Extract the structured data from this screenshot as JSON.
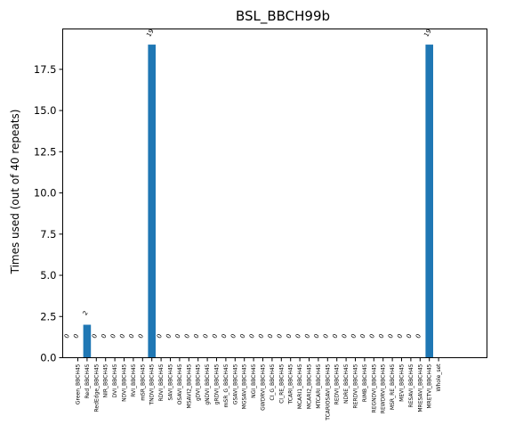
{
  "chart_data": {
    "type": "bar",
    "title": "BSL_BBCH99b",
    "xlabel": "",
    "ylabel": "Times used (out of 40 repeats)",
    "ylim": [
      0,
      19.95
    ],
    "yticks": [
      0.0,
      2.5,
      5.0,
      7.5,
      10.0,
      12.5,
      15.0,
      17.5
    ],
    "ytick_labels": [
      "0.0",
      "2.5",
      "5.0",
      "7.5",
      "10.0",
      "12.5",
      "15.0",
      "17.5"
    ],
    "grid": false,
    "bar_color": "#1f77b4",
    "label_left_of_first_bar": "0",
    "categories": [
      "Green_BBCH45",
      "Red_BBCH45",
      "RedEdge_BBCH45",
      "NIR_BBCH45",
      "DVI_BBCH45",
      "NDVI_BBCH45",
      "RVI_BBCH45",
      "mSR_BBCH45",
      "TNDVI_BBCH45",
      "RDVI_BBCH45",
      "SAVI_BBCH45",
      "OSAVI_BBCH45",
      "MSAVI2_BBCH45",
      "gDVI_BBCH45",
      "gNDVI_BBCH45",
      "gRDVI_BBCH45",
      "mSR_G_BBCH45",
      "GSAVI_BBCH45",
      "MGSAVI_BBCH45",
      "NGI_BBCH45",
      "GWDRVI_BBCH45",
      "CI_G_BBCH45",
      "CI_RE_BBCH45",
      "TCARI_BBCH45",
      "MCARI1_BBCH45",
      "MCARI2_BBCH45",
      "MTCARI_BBCH45",
      "TCARIOSAVI_BBCH45",
      "REDVI_BBCH45",
      "NDRE_BBCH45",
      "RERDVI_BBCH45",
      "RIMB_BBCH45",
      "REGNDVI_BBCH45",
      "REWDRVI_BBCH45",
      "MSR_RE_BBCH45",
      "MEVI_BBCH45",
      "RESAVI_BBCH45",
      "MRESAVI_BBCH45",
      "MRETVI_BBCH45",
      "Whole_set"
    ],
    "values": [
      0,
      2,
      0,
      0,
      0,
      0,
      0,
      0,
      19,
      0,
      0,
      0,
      0,
      0,
      0,
      0,
      0,
      0,
      0,
      0,
      0,
      0,
      0,
      0,
      0,
      0,
      0,
      0,
      0,
      0,
      0,
      0,
      0,
      0,
      0,
      0,
      0,
      0,
      19,
      null
    ],
    "data_labels": [
      "0",
      "2",
      "0",
      "0",
      "0",
      "0",
      "0",
      "0",
      "19",
      "0",
      "0",
      "0",
      "0",
      "0",
      "0",
      "0",
      "0",
      "0",
      "0",
      "0",
      "0",
      "0",
      "0",
      "0",
      "0",
      "0",
      "0",
      "0",
      "0",
      "0",
      "0",
      "0",
      "0",
      "0",
      "0",
      "0",
      "0",
      "0",
      "19",
      ""
    ]
  }
}
